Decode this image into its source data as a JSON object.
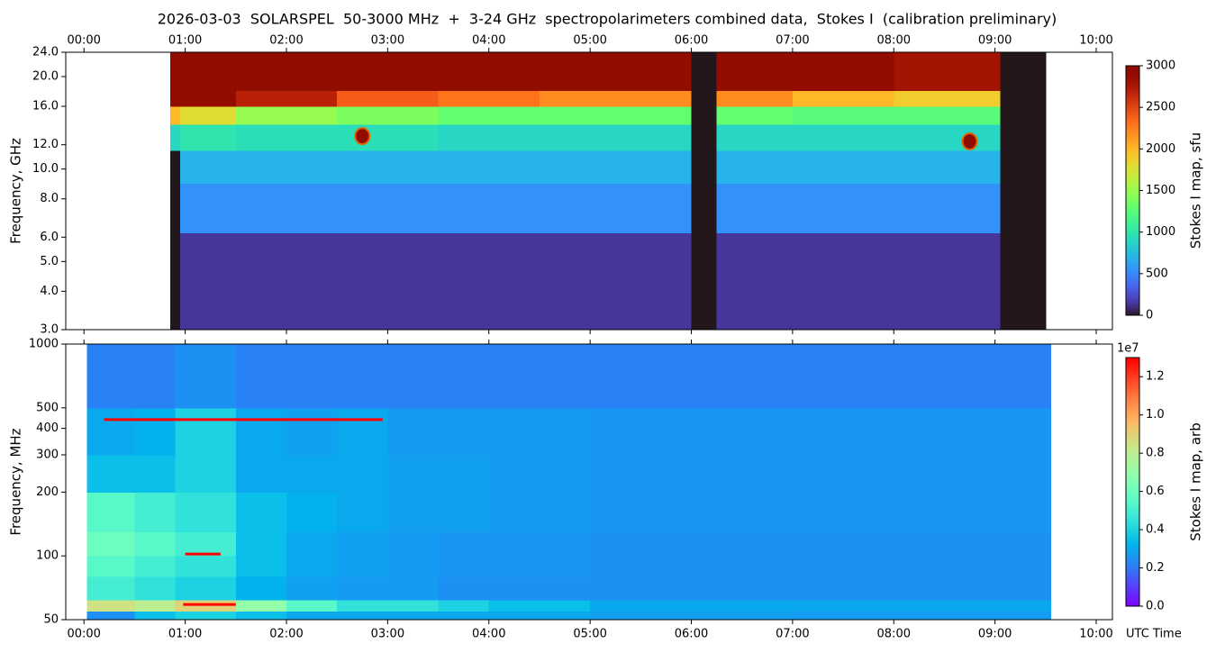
{
  "title": "2026-03-03  SOLARSPEL  50-3000 MHz  +  3-24 GHz  spectropolarimeters combined data,  Stokes I  (calibration preliminary)",
  "chart_data": [
    {
      "type": "heatmap",
      "y_label": "Frequency, GHz",
      "xaxis_position": "top",
      "ylog": true,
      "colormap": "turbo",
      "xlim": [
        -0.18,
        10.16
      ],
      "xticks": [
        {
          "value": 0,
          "label": "00:00"
        },
        {
          "value": 1,
          "label": "01:00"
        },
        {
          "value": 2,
          "label": "02:00"
        },
        {
          "value": 3,
          "label": "03:00"
        },
        {
          "value": 4,
          "label": "04:00"
        },
        {
          "value": 5,
          "label": "05:00"
        },
        {
          "value": 6,
          "label": "06:00"
        },
        {
          "value": 7,
          "label": "07:00"
        },
        {
          "value": 8,
          "label": "08:00"
        },
        {
          "value": 9,
          "label": "09:00"
        },
        {
          "value": 10,
          "label": "10:00"
        }
      ],
      "ylim": [
        3,
        24
      ],
      "yticks": [
        {
          "value": 3,
          "label": "3.0"
        },
        {
          "value": 4,
          "label": "4.0"
        },
        {
          "value": 5,
          "label": "5.0"
        },
        {
          "value": 6,
          "label": "6.0"
        },
        {
          "value": 8,
          "label": "8.0"
        },
        {
          "value": 10,
          "label": "10.0"
        },
        {
          "value": 12,
          "label": "12.0"
        },
        {
          "value": 16,
          "label": "16.0"
        },
        {
          "value": 20,
          "label": "20.0"
        },
        {
          "value": 24,
          "label": "24.0"
        }
      ],
      "x_edges": [
        0.85,
        0.95,
        1.5,
        2.5,
        3.5,
        4.5,
        5.5,
        6.0,
        6.25,
        7.0,
        8.0,
        9.05,
        9.5
      ],
      "y_edges": [
        3,
        6.2,
        9,
        11.5,
        14,
        16,
        18,
        24
      ],
      "z": [
        [
          0,
          150,
          150,
          150,
          150,
          150,
          150,
          0,
          150,
          150,
          150,
          0
        ],
        [
          0,
          550,
          550,
          550,
          550,
          550,
          550,
          0,
          550,
          550,
          550,
          0
        ],
        [
          0,
          700,
          700,
          700,
          700,
          700,
          700,
          0,
          700,
          700,
          700,
          0
        ],
        [
          900,
          1000,
          950,
          950,
          900,
          900,
          900,
          0,
          900,
          900,
          900,
          0
        ],
        [
          2000,
          1800,
          1500,
          1400,
          1300,
          1300,
          1300,
          0,
          1300,
          1250,
          1250,
          0
        ],
        [
          3000,
          2900,
          2700,
          2400,
          2300,
          2200,
          2200,
          0,
          2200,
          2000,
          1900,
          0
        ],
        [
          3000,
          3000,
          3000,
          3000,
          3000,
          3000,
          3000,
          0,
          3000,
          2900,
          2800,
          0
        ]
      ],
      "spots": [
        {
          "x": 2.75,
          "y": 12.8,
          "value": 3000
        },
        {
          "x": 8.75,
          "y": 12.3,
          "value": 3000
        }
      ],
      "colorbar": {
        "label": "Stokes I map, sfu",
        "lim": [
          0,
          3000
        ],
        "ticks": [
          0,
          500,
          1000,
          1500,
          2000,
          2500,
          3000
        ]
      }
    },
    {
      "type": "heatmap",
      "y_label": "Frequency, MHz",
      "x_label": "UTC Time",
      "xaxis_position": "bottom",
      "ylog": true,
      "colormap": "rainbow",
      "xlim": [
        -0.18,
        10.16
      ],
      "xticks": [
        {
          "value": 0,
          "label": "00:00"
        },
        {
          "value": 1,
          "label": "01:00"
        },
        {
          "value": 2,
          "label": "02:00"
        },
        {
          "value": 3,
          "label": "03:00"
        },
        {
          "value": 4,
          "label": "04:00"
        },
        {
          "value": 5,
          "label": "05:00"
        },
        {
          "value": 6,
          "label": "06:00"
        },
        {
          "value": 7,
          "label": "07:00"
        },
        {
          "value": 8,
          "label": "08:00"
        },
        {
          "value": 9,
          "label": "09:00"
        },
        {
          "value": 10,
          "label": "10:00"
        }
      ],
      "ylim": [
        50,
        1000
      ],
      "yticks": [
        50,
        100,
        200,
        300,
        400,
        500,
        1000
      ],
      "x_edges": [
        0.03,
        0.5,
        0.9,
        1.5,
        2.0,
        2.5,
        3.0,
        3.5,
        4.0,
        5.0,
        6.0,
        7.0,
        8.0,
        9.0,
        9.55
      ],
      "y_edges": [
        50,
        55,
        62,
        80,
        100,
        130,
        200,
        300,
        500,
        1000
      ],
      "z": [
        [
          0.25,
          0.35,
          0.4,
          0.35,
          0.3,
          0.3,
          0.3,
          0.3,
          0.3,
          0.28,
          0.28,
          0.27,
          0.27,
          0.27
        ],
        [
          0.85,
          0.8,
          0.9,
          0.7,
          0.55,
          0.45,
          0.45,
          0.4,
          0.35,
          0.3,
          0.3,
          0.3,
          0.3,
          0.3
        ],
        [
          0.5,
          0.45,
          0.4,
          0.32,
          0.28,
          0.27,
          0.27,
          0.25,
          0.25,
          0.25,
          0.25,
          0.25,
          0.25,
          0.25
        ],
        [
          0.55,
          0.5,
          0.45,
          0.35,
          0.3,
          0.28,
          0.27,
          0.26,
          0.26,
          0.25,
          0.25,
          0.25,
          0.25,
          0.25
        ],
        [
          0.6,
          0.55,
          0.5,
          0.35,
          0.3,
          0.28,
          0.27,
          0.26,
          0.26,
          0.25,
          0.25,
          0.25,
          0.25,
          0.25
        ],
        [
          0.55,
          0.5,
          0.45,
          0.35,
          0.32,
          0.3,
          0.28,
          0.28,
          0.27,
          0.26,
          0.26,
          0.26,
          0.26,
          0.26
        ],
        [
          0.35,
          0.35,
          0.4,
          0.3,
          0.3,
          0.3,
          0.28,
          0.28,
          0.27,
          0.26,
          0.26,
          0.26,
          0.26,
          0.26
        ],
        [
          0.3,
          0.32,
          0.4,
          0.3,
          0.28,
          0.3,
          0.27,
          0.27,
          0.27,
          0.26,
          0.26,
          0.26,
          0.26,
          0.26
        ],
        [
          0.22,
          0.22,
          0.25,
          0.22,
          0.22,
          0.22,
          0.22,
          0.22,
          0.22,
          0.22,
          0.22,
          0.22,
          0.22,
          0.22
        ]
      ],
      "lines": [
        {
          "x0": 0.98,
          "x1": 1.5,
          "y": 59,
          "value": 1.3
        },
        {
          "x0": 1.0,
          "x1": 1.35,
          "y": 102,
          "value": 1.3
        },
        {
          "x0": 0.2,
          "x1": 2.95,
          "y": 440,
          "value": 1.3
        }
      ],
      "colorbar": {
        "label": "Stokes I map, arb",
        "scale_label": "1e7",
        "lim": [
          0,
          1.3
        ],
        "ticks": [
          {
            "value": 0,
            "label": "0.0"
          },
          {
            "value": 0.2,
            "label": "0.2"
          },
          {
            "value": 0.4,
            "label": "0.4"
          },
          {
            "value": 0.6,
            "label": "0.6"
          },
          {
            "value": 0.8,
            "label": "0.8"
          },
          {
            "value": 1.0,
            "label": "1.0"
          },
          {
            "value": 1.2,
            "label": "1.2"
          }
        ]
      }
    }
  ]
}
